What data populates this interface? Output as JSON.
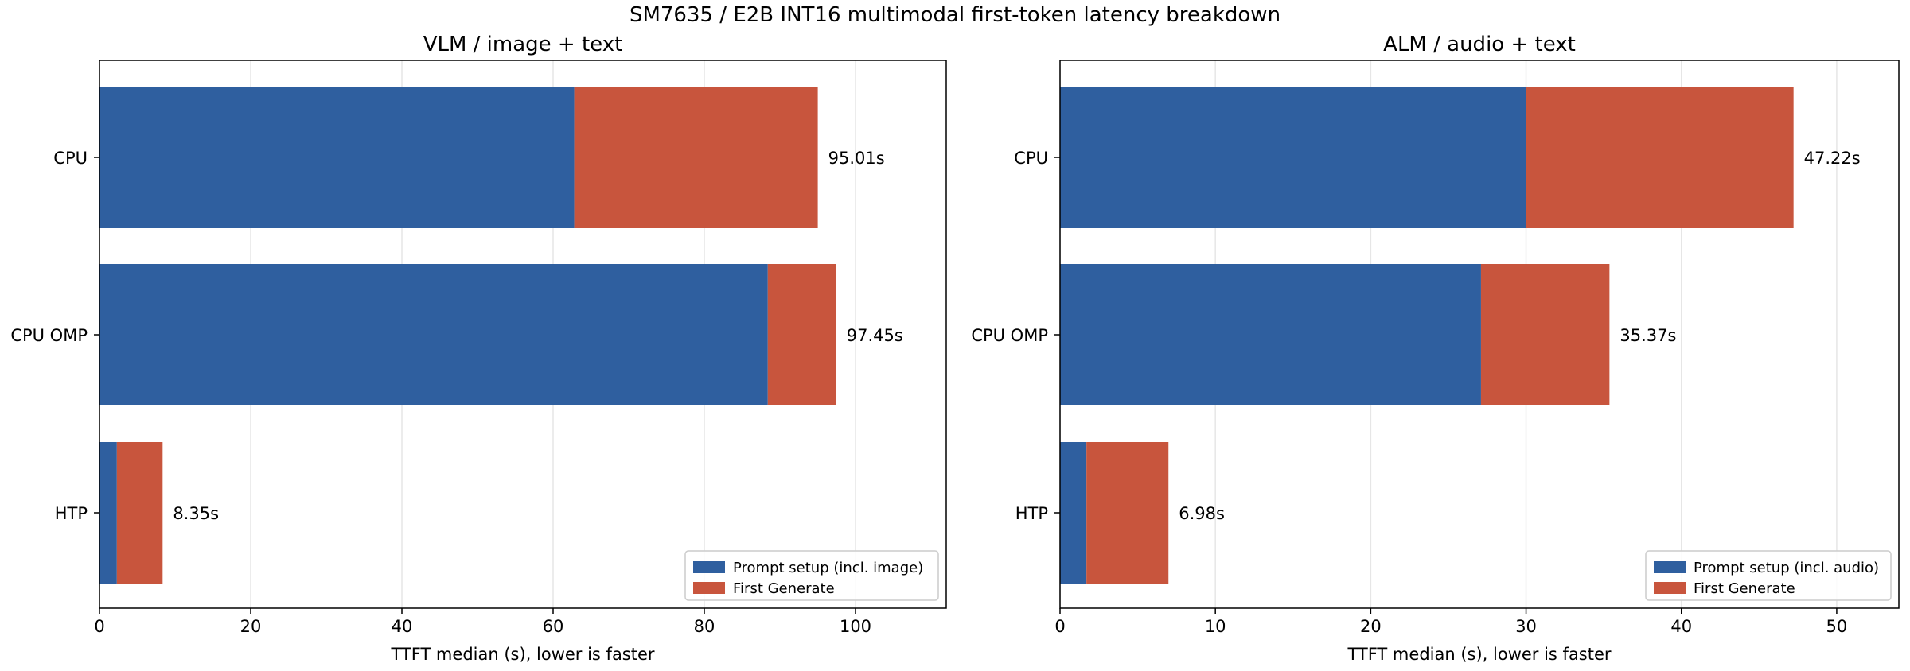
{
  "suptitle": "SM7635 / E2B INT16 multimodal first-token latency breakdown",
  "colors": {
    "setup": "#2f5f9f",
    "generate": "#c8553d",
    "grid": "#e6e6e6",
    "axis": "#000000"
  },
  "chart_data": [
    {
      "type": "bar",
      "orientation": "horizontal",
      "stacked": true,
      "title": "VLM / image + text",
      "xlabel": "TTFT median (s), lower is faster",
      "xlim": [
        0,
        112
      ],
      "xticks": [
        0,
        20,
        40,
        60,
        80,
        100
      ],
      "grid": "x",
      "categories": [
        "CPU",
        "CPU OMP",
        "HTP"
      ],
      "series": [
        {
          "name": "Prompt setup (incl. image)",
          "values": [
            62.8,
            88.4,
            2.3
          ],
          "color": "#2f5f9f"
        },
        {
          "name": "First Generate",
          "values": [
            32.21,
            9.05,
            6.05
          ],
          "color": "#c8553d"
        }
      ],
      "totals": [
        95.01,
        97.45,
        8.35
      ],
      "total_labels": [
        "95.01s",
        "97.45s",
        "8.35s"
      ],
      "legend": "lower-right"
    },
    {
      "type": "bar",
      "orientation": "horizontal",
      "stacked": true,
      "title": "ALM / audio + text",
      "xlabel": "TTFT median (s), lower is faster",
      "xlim": [
        0,
        54
      ],
      "xticks": [
        0,
        10,
        20,
        30,
        40,
        50
      ],
      "grid": "x",
      "categories": [
        "CPU",
        "CPU OMP",
        "HTP"
      ],
      "series": [
        {
          "name": "Prompt setup (incl. audio)",
          "values": [
            30.0,
            27.1,
            1.7
          ],
          "color": "#2f5f9f"
        },
        {
          "name": "First Generate",
          "values": [
            17.22,
            8.27,
            5.28
          ],
          "color": "#c8553d"
        }
      ],
      "totals": [
        47.22,
        35.37,
        6.98
      ],
      "total_labels": [
        "47.22s",
        "35.37s",
        "6.98s"
      ],
      "legend": "lower-right"
    }
  ]
}
